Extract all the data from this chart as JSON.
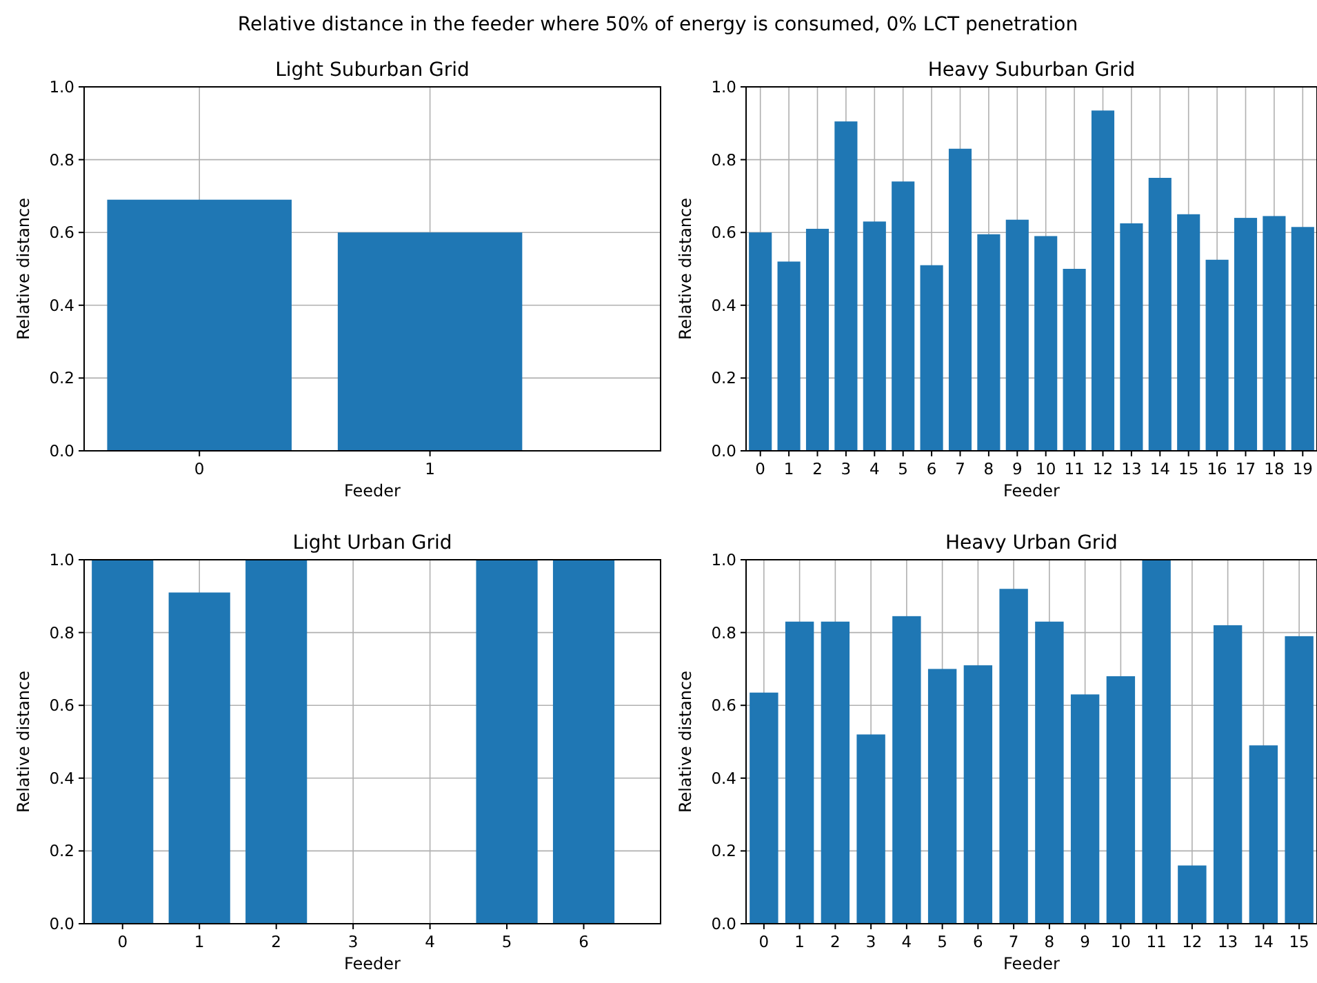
{
  "chart_data": [
    {
      "type": "other",
      "title": "Relative distance in the feeder where 50% of energy is consumed, 0% LCT penetration"
    },
    {
      "type": "bar",
      "title": "Light Suburban Grid",
      "xlabel": "Feeder",
      "ylabel": "Relative distance",
      "x": [
        0,
        1
      ],
      "values": [
        0.69,
        0.6
      ],
      "color": "#1f77b4",
      "xlim": [
        -0.5,
        2
      ],
      "xticks": [
        0,
        1
      ],
      "ylim": [
        0,
        1
      ],
      "yticks": [
        {
          "value": 0,
          "label": "0.0"
        },
        {
          "value": 0.2,
          "label": "0.2"
        },
        {
          "value": 0.4,
          "label": "0.4"
        },
        {
          "value": 0.6,
          "label": "0.6"
        },
        {
          "value": 0.8,
          "label": "0.8"
        },
        {
          "value": 1,
          "label": "1.0"
        }
      ],
      "grid": true
    },
    {
      "type": "bar",
      "title": "Heavy Suburban Grid",
      "xlabel": "Feeder",
      "ylabel": "Relative distance",
      "x": [
        0,
        1,
        2,
        3,
        4,
        5,
        6,
        7,
        8,
        9,
        10,
        11,
        12,
        13,
        14,
        15,
        16,
        17,
        18,
        19
      ],
      "values": [
        0.6,
        0.52,
        0.61,
        0.905,
        0.63,
        0.74,
        0.51,
        0.83,
        0.595,
        0.635,
        0.59,
        0.5,
        0.935,
        0.625,
        0.75,
        0.65,
        0.525,
        0.64,
        0.645,
        0.615
      ],
      "color": "#1f77b4",
      "xlim": [
        -0.5,
        19.5
      ],
      "xticks": [
        0,
        1,
        2,
        3,
        4,
        5,
        6,
        7,
        8,
        9,
        10,
        11,
        12,
        13,
        14,
        15,
        16,
        17,
        18,
        19
      ],
      "ylim": [
        0,
        1
      ],
      "yticks": [
        {
          "value": 0,
          "label": "0.0"
        },
        {
          "value": 0.2,
          "label": "0.2"
        },
        {
          "value": 0.4,
          "label": "0.4"
        },
        {
          "value": 0.6,
          "label": "0.6"
        },
        {
          "value": 0.8,
          "label": "0.8"
        },
        {
          "value": 1,
          "label": "1.0"
        }
      ],
      "grid": true
    },
    {
      "type": "bar",
      "title": "Light Urban Grid",
      "xlabel": "Feeder",
      "ylabel": "Relative distance",
      "x": [
        0,
        1,
        2,
        3,
        4,
        5,
        6
      ],
      "values": [
        1,
        0.91,
        1,
        0,
        0,
        1,
        1
      ],
      "color": "#1f77b4",
      "xlim": [
        -0.5,
        7
      ],
      "xticks": [
        0,
        1,
        2,
        3,
        4,
        5,
        6
      ],
      "ylim": [
        0,
        1
      ],
      "yticks": [
        {
          "value": 0,
          "label": "0.0"
        },
        {
          "value": 0.2,
          "label": "0.2"
        },
        {
          "value": 0.4,
          "label": "0.4"
        },
        {
          "value": 0.6,
          "label": "0.6"
        },
        {
          "value": 0.8,
          "label": "0.8"
        },
        {
          "value": 1,
          "label": "1.0"
        }
      ],
      "grid": true
    },
    {
      "type": "bar",
      "title": "Heavy Urban Grid",
      "xlabel": "Feeder",
      "ylabel": "Relative distance",
      "x": [
        0,
        1,
        2,
        3,
        4,
        5,
        6,
        7,
        8,
        9,
        10,
        11,
        12,
        13,
        14,
        15
      ],
      "values": [
        0.635,
        0.83,
        0.83,
        0.52,
        0.845,
        0.7,
        0.71,
        0.92,
        0.83,
        0.63,
        0.68,
        1,
        0.16,
        0.82,
        0.49,
        0.79
      ],
      "color": "#1f77b4",
      "xlim": [
        -0.5,
        15.5
      ],
      "xticks": [
        0,
        1,
        2,
        3,
        4,
        5,
        6,
        7,
        8,
        9,
        10,
        11,
        12,
        13,
        14,
        15
      ],
      "ylim": [
        0,
        1
      ],
      "yticks": [
        {
          "value": 0,
          "label": "0.0"
        },
        {
          "value": 0.2,
          "label": "0.2"
        },
        {
          "value": 0.4,
          "label": "0.4"
        },
        {
          "value": 0.6,
          "label": "0.6"
        },
        {
          "value": 0.8,
          "label": "0.8"
        },
        {
          "value": 1,
          "label": "1.0"
        }
      ],
      "grid": true
    }
  ]
}
